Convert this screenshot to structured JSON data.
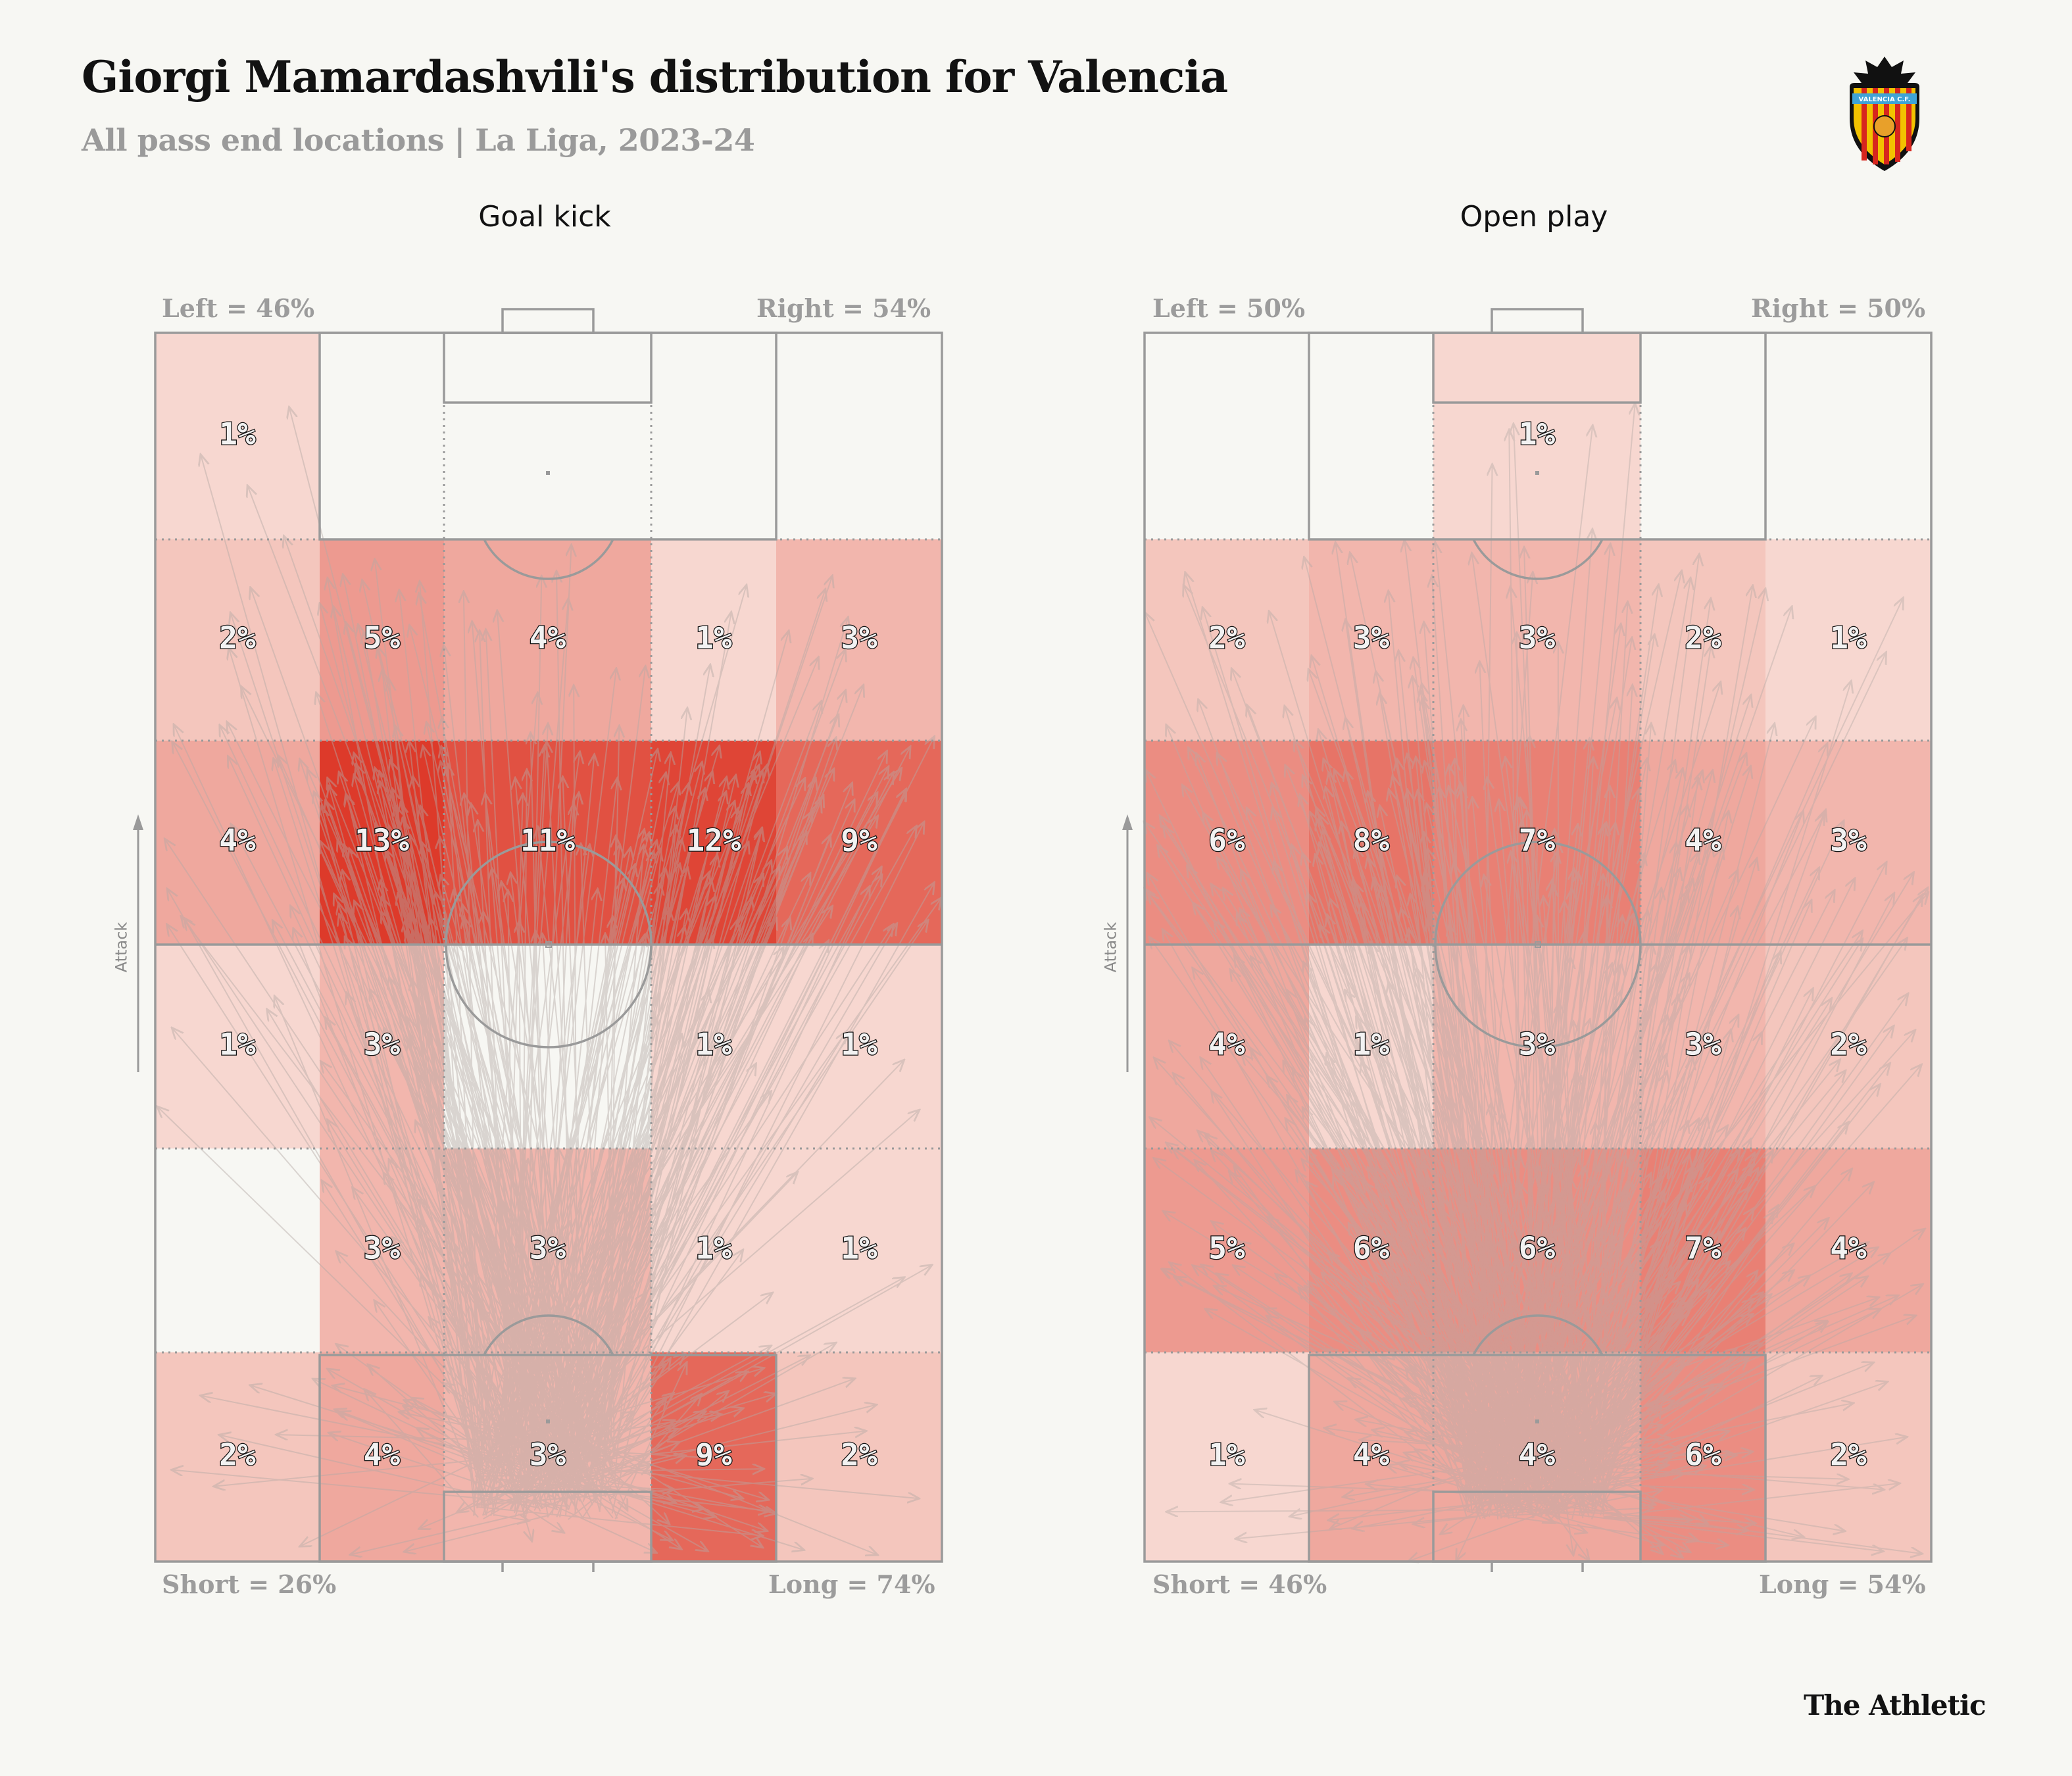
{
  "header": {
    "title": "Giorgi Mamardashvili's distribution for Valencia",
    "subtitle": "All pass end locations | La Liga, 2023-24",
    "crest_text": "VALENCIA C.F.",
    "brand": "The Athletic"
  },
  "colors": {
    "background": "#f7f7f3",
    "heat_low": "#fbeee8",
    "heat_high": "#dd3a2a",
    "pitch_lines": "#9a9a9a",
    "arrows": "#b5aaa6"
  },
  "chart_data": [
    {
      "type": "heatmap",
      "title": "Goal kick",
      "left_label": "Left = 46%",
      "right_label": "Right = 54%",
      "short_label": "Short = 26%",
      "long_label": "Long = 74%",
      "direction_label": "Attack",
      "columns": 5,
      "rows": 6,
      "row_order": "attacking end first",
      "values": [
        [
          1,
          0,
          0,
          0,
          0
        ],
        [
          2,
          5,
          4,
          1,
          3
        ],
        [
          4,
          13,
          11,
          12,
          9
        ],
        [
          1,
          3,
          0,
          1,
          1
        ],
        [
          0,
          3,
          3,
          1,
          1
        ],
        [
          2,
          4,
          3,
          9,
          2
        ]
      ],
      "labels": [
        [
          "1%",
          "",
          "",
          "",
          ""
        ],
        [
          "2%",
          "5%",
          "4%",
          "1%",
          "3%"
        ],
        [
          "4%",
          "13%",
          "11%",
          "12%",
          "9%"
        ],
        [
          "1%",
          "3%",
          "",
          "1%",
          "1%"
        ],
        [
          "",
          "3%",
          "3%",
          "1%",
          "1%"
        ],
        [
          "2%",
          "4%",
          "3%",
          "9%",
          "2%"
        ]
      ]
    },
    {
      "type": "heatmap",
      "title": "Open play",
      "left_label": "Left = 50%",
      "right_label": "Right = 50%",
      "short_label": "Short = 46%",
      "long_label": "Long = 54%",
      "direction_label": "Attack",
      "columns": 5,
      "rows": 6,
      "row_order": "attacking end first",
      "values": [
        [
          0,
          0,
          1,
          0,
          0
        ],
        [
          2,
          3,
          3,
          2,
          1
        ],
        [
          6,
          8,
          7,
          4,
          3
        ],
        [
          4,
          1,
          3,
          3,
          2
        ],
        [
          5,
          6,
          6,
          7,
          4
        ],
        [
          1,
          4,
          4,
          6,
          2
        ]
      ],
      "labels": [
        [
          "",
          "",
          "1%",
          "",
          ""
        ],
        [
          "2%",
          "3%",
          "3%",
          "2%",
          "1%"
        ],
        [
          "6%",
          "8%",
          "7%",
          "4%",
          "3%"
        ],
        [
          "4%",
          "1%",
          "3%",
          "3%",
          "2%"
        ],
        [
          "5%",
          "6%",
          "6%",
          "7%",
          "4%"
        ],
        [
          "1%",
          "4%",
          "4%",
          "6%",
          "2%"
        ]
      ]
    }
  ]
}
